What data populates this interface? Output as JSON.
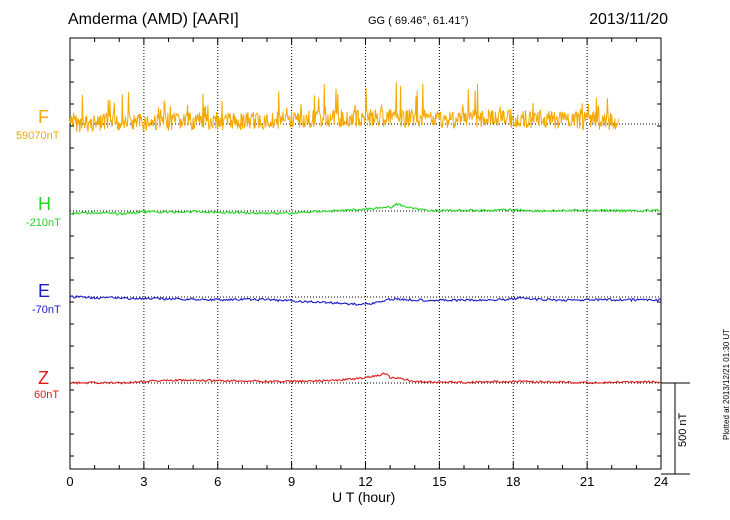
{
  "header": {
    "title": "Amderma (AMD)  [AARI]",
    "coords": "GG ( 69.46°,  61.41°)",
    "date": "2013/11/20"
  },
  "footer_note": "Plotted at 2013/12/21 01:30 UT",
  "colors": {
    "F": "#f5a800",
    "H": "#22d622",
    "E": "#1a1acc",
    "Z": "#e01a1a"
  },
  "chart_data": {
    "type": "line",
    "xlabel": "U T (hour)",
    "xlim": [
      0,
      24
    ],
    "xticks": [
      "0",
      "3",
      "6",
      "9",
      "12",
      "15",
      "18",
      "21",
      "24"
    ],
    "y_unit": "nT",
    "scale_bar": {
      "value": 500,
      "label": "500 nT"
    },
    "series": [
      {
        "name": "F",
        "baseline_label": "59070nT",
        "baseline": 59070,
        "x": [
          0,
          1,
          2,
          3,
          4,
          5,
          6,
          7,
          8,
          9,
          10,
          11,
          12,
          13,
          14,
          15,
          16,
          17,
          18,
          19,
          20,
          21,
          22.3
        ],
        "y": [
          59071,
          59074,
          59076,
          59080,
          59083,
          59085,
          59086,
          59085,
          59089,
          59094,
          59097,
          59100,
          59101,
          59103,
          59101,
          59097,
          59096,
          59100,
          59099,
          59095,
          59092,
          59088,
          59085
        ]
      },
      {
        "name": "H",
        "baseline_label": "-210nT",
        "baseline": -210,
        "x": [
          0,
          1,
          2,
          3,
          4,
          5,
          6,
          7,
          8,
          9,
          10,
          11,
          12,
          12.5,
          13,
          13.3,
          14,
          15,
          16,
          17,
          18,
          19,
          20,
          21,
          22,
          23,
          24
        ],
        "y": [
          -224,
          -218,
          -226,
          -213,
          -216,
          -213,
          -217,
          -219,
          -221,
          -222,
          -212,
          -208,
          -200,
          -192,
          -190,
          -172,
          -200,
          -209,
          -206,
          -207,
          -204,
          -209,
          -209,
          -205,
          -208,
          -208,
          -208
        ]
      },
      {
        "name": "E",
        "baseline_label": "-70nT",
        "baseline": -70,
        "x": [
          0,
          1,
          2,
          3,
          4,
          5,
          6,
          7,
          8,
          9,
          10,
          11,
          11.7,
          12,
          12.5,
          13,
          13.2,
          14,
          15,
          16,
          17,
          18,
          18.3,
          19,
          20,
          21,
          22,
          23,
          24
        ],
        "y": [
          -70,
          -73,
          -75,
          -80,
          -80,
          -82,
          -85,
          -84,
          -84,
          -92,
          -98,
          -104,
          -111,
          -108,
          -100,
          -82,
          -81,
          -86,
          -88,
          -88,
          -87,
          -80,
          -75,
          -84,
          -87,
          -86,
          -85,
          -86,
          -85
        ]
      },
      {
        "name": "Z",
        "baseline_label": "60nT",
        "baseline": 60,
        "x": [
          0,
          1,
          2,
          3,
          4,
          5,
          6,
          7,
          8,
          9,
          10,
          11,
          12,
          12.5,
          12.8,
          13,
          13.5,
          14,
          15,
          16,
          17,
          18,
          19,
          20,
          21,
          22,
          23,
          24
        ],
        "y": [
          60,
          62,
          59,
          70,
          75,
          74,
          72,
          72,
          69,
          69,
          71,
          76,
          89,
          101,
          113,
          90,
          82,
          69,
          64,
          64,
          66,
          70,
          66,
          66,
          60,
          64,
          65,
          66
        ]
      }
    ]
  }
}
